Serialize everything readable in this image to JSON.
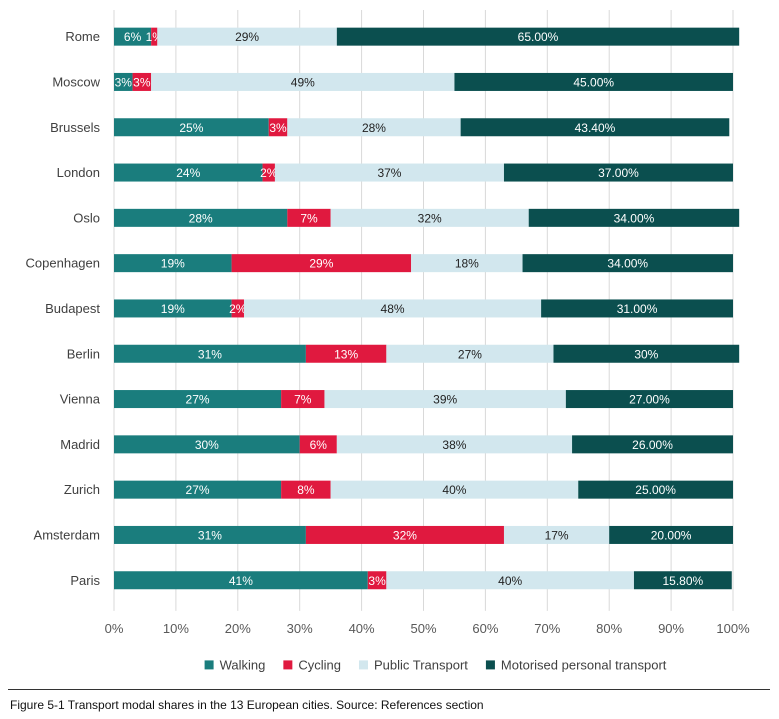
{
  "chart_data": {
    "type": "bar",
    "orientation": "horizontal",
    "stacked": true,
    "categories": [
      "Rome",
      "Moscow",
      "Brussels",
      "London",
      "Oslo",
      "Copenhagen",
      "Budapest",
      "Berlin",
      "Vienna",
      "Madrid",
      "Zurich",
      "Amsterdam",
      "Paris"
    ],
    "series": [
      {
        "name": "Walking",
        "color": "#1a7d7d",
        "values": [
          6,
          3,
          25,
          24,
          28,
          19,
          19,
          31,
          27,
          30,
          27,
          31,
          41
        ],
        "labels": [
          "6%",
          "3%",
          "25%",
          "24%",
          "28%",
          "19%",
          "19%",
          "31%",
          "27%",
          "30%",
          "27%",
          "31%",
          "41%"
        ]
      },
      {
        "name": "Cycling",
        "color": "#e0193f",
        "values": [
          1,
          3,
          3,
          2,
          7,
          29,
          2,
          13,
          7,
          6,
          8,
          32,
          3
        ],
        "labels": [
          "1%",
          "3%",
          "3%",
          "2%",
          "7%",
          "29%",
          "2%",
          "13%",
          "7%",
          "6%",
          "8%",
          "32%",
          "3%"
        ]
      },
      {
        "name": "Public Transport",
        "color": "#d2e7ee",
        "values": [
          29,
          49,
          28,
          37,
          32,
          18,
          48,
          27,
          39,
          38,
          40,
          17,
          40
        ],
        "labels": [
          "29%",
          "49%",
          "28%",
          "37%",
          "32%",
          "18%",
          "48%",
          "27%",
          "39%",
          "38%",
          "40%",
          "17%",
          "40%"
        ]
      },
      {
        "name": "Motorised personal transport",
        "color": "#0b4f4f",
        "values": [
          65,
          45,
          43.4,
          37,
          34,
          34,
          31,
          30,
          27,
          26,
          25,
          20,
          15.8
        ],
        "labels": [
          "65.00%",
          "45.00%",
          "43.40%",
          "37.00%",
          "34.00%",
          "34.00%",
          "31.00%",
          "30%",
          "27.00%",
          "26.00%",
          "25.00%",
          "20.00%",
          "15.80%"
        ]
      }
    ],
    "x_ticks": [
      "0%",
      "10%",
      "20%",
      "30%",
      "40%",
      "50%",
      "60%",
      "70%",
      "80%",
      "90%",
      "100%"
    ],
    "xlim": [
      0,
      100
    ],
    "grid": true,
    "legend_position": "bottom"
  },
  "caption": "Figure 5-1 Transport modal shares in the 13 European cities. Source: References section"
}
